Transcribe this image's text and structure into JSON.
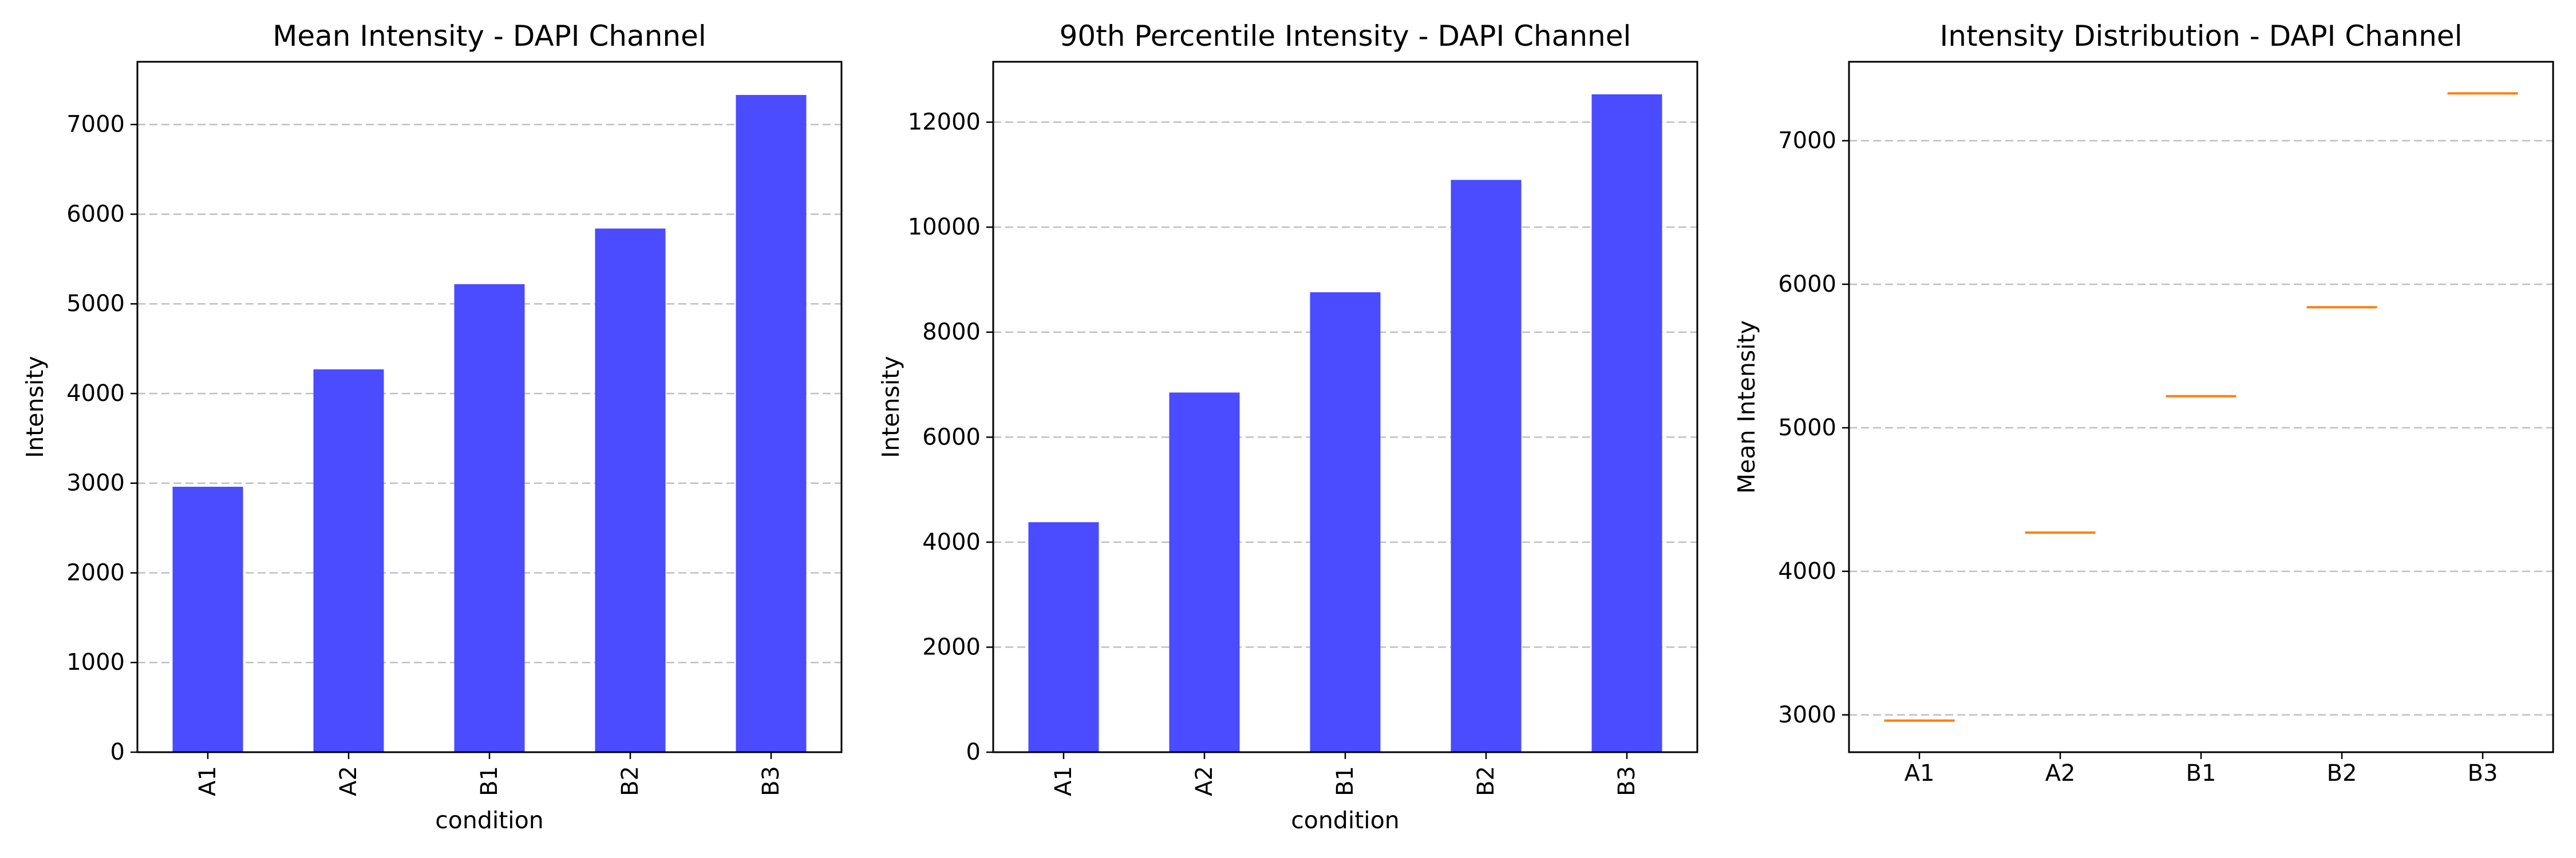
{
  "chart_data": [
    {
      "type": "bar",
      "title": "Mean Intensity - DAPI Channel",
      "xlabel": "condition",
      "ylabel": "Intensity",
      "categories": [
        "A1",
        "A2",
        "B1",
        "B2",
        "B3"
      ],
      "values": [
        2960,
        4270,
        5220,
        5840,
        7330
      ],
      "ylim": [
        0,
        7700
      ],
      "yticks": [
        0,
        1000,
        2000,
        3000,
        4000,
        5000,
        6000,
        7000
      ],
      "xtick_rotation": "vertical",
      "grid": "y-dashed",
      "color": "#4b4bff"
    },
    {
      "type": "bar",
      "title": "90th Percentile Intensity - DAPI Channel",
      "xlabel": "condition",
      "ylabel": "Intensity",
      "categories": [
        "A1",
        "A2",
        "B1",
        "B2",
        "B3"
      ],
      "values": [
        4380,
        6850,
        8760,
        10900,
        12530
      ],
      "ylim": [
        0,
        13150
      ],
      "yticks": [
        0,
        2000,
        4000,
        6000,
        8000,
        10000,
        12000
      ],
      "xtick_rotation": "vertical",
      "grid": "y-dashed",
      "color": "#4b4bff"
    },
    {
      "type": "box",
      "title": "Intensity Distribution - DAPI Channel",
      "xlabel": "",
      "ylabel": "Mean Intensity",
      "categories": [
        "A1",
        "A2",
        "B1",
        "B2",
        "B3"
      ],
      "values": [
        2960,
        4270,
        5220,
        5840,
        7330
      ],
      "ylim": [
        2740,
        7550
      ],
      "yticks": [
        3000,
        4000,
        5000,
        6000,
        7000
      ],
      "xtick_rotation": "horizontal",
      "grid": "y-dashed",
      "color": "#ff7f0e"
    }
  ]
}
